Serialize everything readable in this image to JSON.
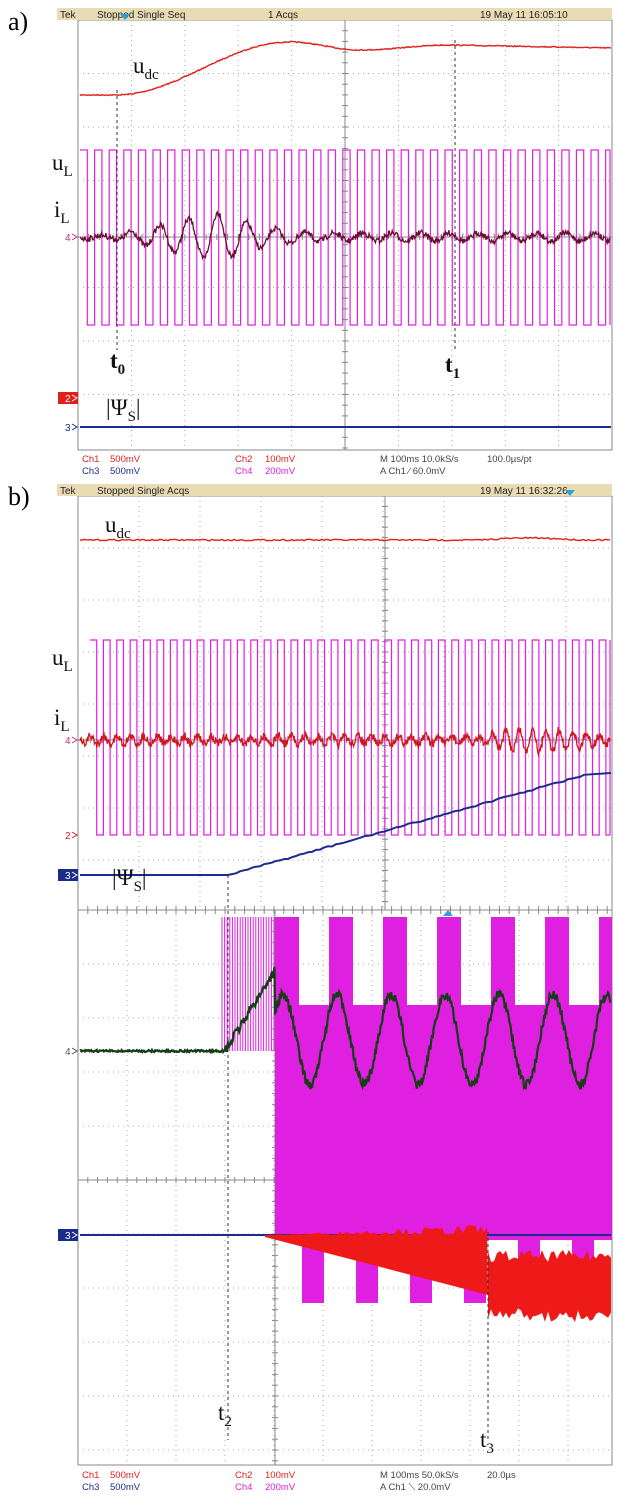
{
  "panels": [
    {
      "label": "a)",
      "header": [
        "Tek",
        "Stopped  Single Seq",
        "1 Acqs",
        "19 May 11 16:05:10"
      ],
      "trace_labels": [
        {
          "symbol": "u",
          "sub": "dc"
        },
        {
          "symbol": "u",
          "sub": "L"
        },
        {
          "symbol": "i",
          "sub": "L"
        },
        {
          "symbol": "|Ψ",
          "sub": "S",
          "close": "|"
        }
      ],
      "time_markers": [
        {
          "symbol": "t",
          "sub": "0"
        },
        {
          "symbol": "t",
          "sub": "1"
        }
      ],
      "channel_markers": [
        "4",
        "2",
        "3"
      ],
      "footer": [
        [
          "Ch1",
          "500mV",
          "Ch2",
          "100mV",
          "M 100ms 10.0kS/s",
          "100.0µs/pt"
        ],
        [
          "Ch3",
          "500mV",
          "Ch4",
          "200mV",
          "A  Ch1  ⁄  60.0mV"
        ]
      ]
    },
    {
      "label": "b)",
      "header": [
        "Tek",
        "Stopped  Single Acqs",
        "19 May 11 16:32:26"
      ],
      "trace_labels": [
        {
          "symbol": "u",
          "sub": "dc"
        },
        {
          "symbol": "u",
          "sub": "L"
        },
        {
          "symbol": "i",
          "sub": "L"
        },
        {
          "symbol": "|Ψ",
          "sub": "S",
          "close": "|"
        }
      ],
      "time_markers": [
        {
          "symbol": "t",
          "sub": "2"
        },
        {
          "symbol": "t",
          "sub": "3"
        }
      ],
      "channel_markers": [
        "4",
        "2",
        "3",
        "4",
        "3"
      ],
      "footer": [
        [
          "Ch1",
          "500mV",
          "Ch2",
          "100mV",
          "M 100ms 50.0kS/s",
          "20.0µs"
        ],
        [
          "Ch3",
          "500mV",
          "Ch4",
          "200mV",
          "A  Ch1  ⟍  20.0mV"
        ]
      ]
    }
  ]
}
